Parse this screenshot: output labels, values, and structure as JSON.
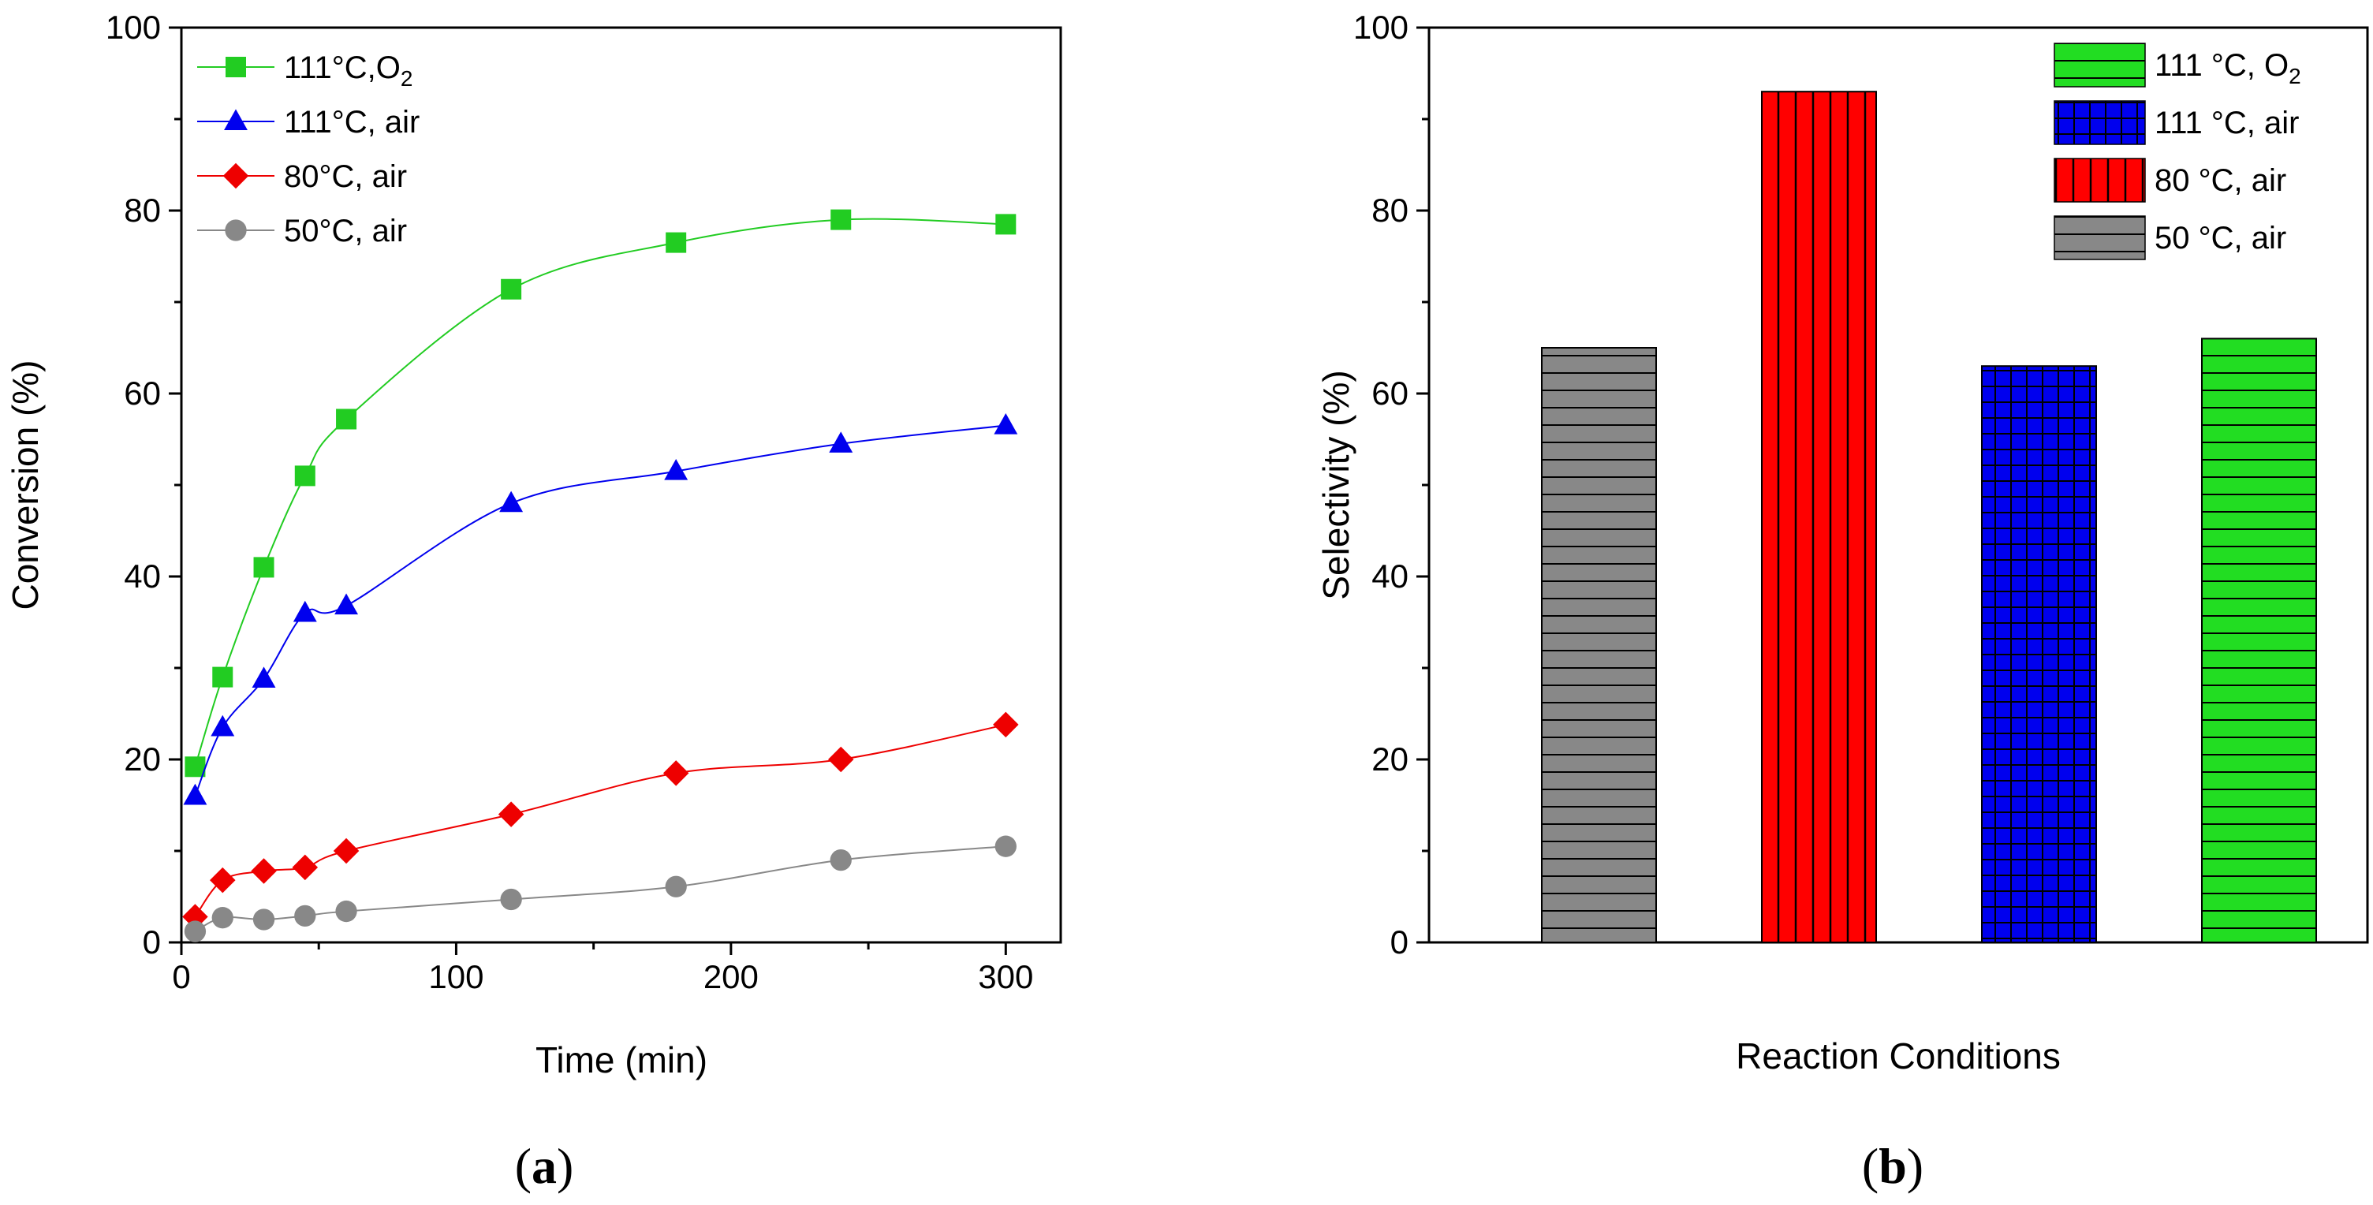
{
  "chart_data": [
    {
      "id": "a",
      "type": "line",
      "caption_letter": "a",
      "xlabel": "Time (min)",
      "ylabel": "Conversion (%)",
      "xlim": [
        0,
        320
      ],
      "ylim": [
        0,
        100
      ],
      "xticks": [
        "0",
        "100",
        "200",
        "300"
      ],
      "yticks": [
        "0",
        "20",
        "40",
        "60",
        "80",
        "100"
      ],
      "x": [
        5,
        15,
        30,
        45,
        60,
        120,
        180,
        240,
        300
      ],
      "series": [
        {
          "name": "111°C,O",
          "sub": "2",
          "color": "#22cc22",
          "marker": "square",
          "values": [
            19.2,
            29.0,
            41.0,
            51.0,
            57.2,
            71.4,
            76.5,
            79.0,
            78.5
          ]
        },
        {
          "name": "111°C, air",
          "sub": "",
          "color": "#0000ee",
          "marker": "triangle",
          "values": [
            16.0,
            23.5,
            28.8,
            36.0,
            36.8,
            48.0,
            51.5,
            54.5,
            56.5
          ]
        },
        {
          "name": "80°C, air",
          "sub": "",
          "color": "#ee0000",
          "marker": "diamond",
          "values": [
            2.8,
            6.8,
            7.8,
            8.2,
            10.0,
            14.0,
            18.5,
            20.0,
            23.8
          ]
        },
        {
          "name": "50°C, air",
          "sub": "",
          "color": "#888888",
          "marker": "circle",
          "values": [
            1.2,
            2.7,
            2.5,
            2.9,
            3.4,
            4.7,
            6.1,
            9.0,
            10.5
          ]
        }
      ]
    },
    {
      "id": "b",
      "type": "bar",
      "caption_letter": "b",
      "xlabel": "Reaction Conditions",
      "ylabel": "Selectivity (%)",
      "ylim": [
        0,
        100
      ],
      "yticks": [
        "0",
        "20",
        "40",
        "60",
        "80",
        "100"
      ],
      "categories": [
        "50 °C, air",
        "80 °C, air",
        "111 °C, air",
        "111 °C, O"
      ],
      "values": [
        65,
        93,
        63,
        66
      ],
      "bars": [
        {
          "name": "50 °C, air",
          "sub": "",
          "color": "#888888",
          "hatch": "horizontal",
          "value": 65
        },
        {
          "name": "80 °C, air",
          "sub": "",
          "color": "#ff0000",
          "hatch": "vertical",
          "value": 93
        },
        {
          "name": "111 °C, air",
          "sub": "",
          "color": "#0000ee",
          "hatch": "grid",
          "value": 63
        },
        {
          "name": "111 °C, O",
          "sub": "2",
          "color": "#22dd22",
          "hatch": "horizontal",
          "value": 66
        }
      ],
      "legend_order": [
        3,
        2,
        1,
        0
      ]
    }
  ]
}
